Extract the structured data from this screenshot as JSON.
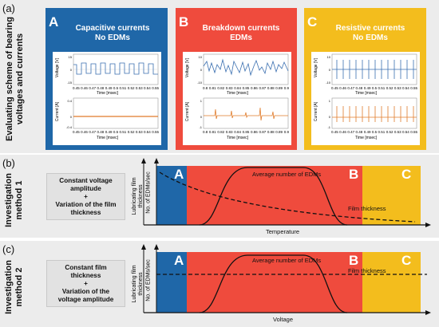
{
  "row_a": {
    "label": "(a)",
    "side_title": "Evaluating scheme of bearing voltages and currents",
    "panels": [
      {
        "letter": "A",
        "title_line1": "Capacitive currents",
        "title_line2": "No EDMs",
        "color": "#1f67a8",
        "ylabel_top": "Voltage [V]",
        "ylabel_bottom": "Current [A]",
        "xticks": [
          "0.45",
          "0.46",
          "0.47",
          "0.48",
          "0.49",
          "0.5",
          "0.51",
          "0.52",
          "0.53",
          "0.54",
          "0.55"
        ],
        "xlabel": "Time [msec]"
      },
      {
        "letter": "B",
        "title_line1": "Breakdown currents",
        "title_line2": "EDMs",
        "color": "#ef4b3d",
        "ylabel_top": "Voltage [V]",
        "ylabel_bottom": "Current [A]",
        "xticks": [
          "0.8",
          "0.81",
          "0.82",
          "0.83",
          "0.84",
          "0.85",
          "0.86",
          "0.87",
          "0.88",
          "0.89",
          "0.9"
        ],
        "xlabel": "Time [msec]"
      },
      {
        "letter": "C",
        "title_line1": "Resistive currents",
        "title_line2": "No EDMs",
        "color": "#f3bd1d",
        "ylabel_top": "Voltage [V]",
        "ylabel_bottom": "Current [A]",
        "xticks": [
          "0.45",
          "0.46",
          "0.47",
          "0.48",
          "0.49",
          "0.5",
          "0.51",
          "0.52",
          "0.53",
          "0.54",
          "0.55"
        ],
        "xlabel": "Time [msec]"
      }
    ]
  },
  "row_b": {
    "label": "(b)",
    "side_title_line1": "Investigation",
    "side_title_line2": "method 1",
    "method_text": [
      "Constant voltage",
      "amplitude",
      "+",
      "Variation of the film",
      "thickness"
    ],
    "ylabel1": "Lubricating film thickness",
    "ylabel2": "No. of EDMs/sec",
    "curve_label": "Average number of EDMs",
    "film_label": "Film thickness",
    "xlabel": "Temperature",
    "zones": [
      "A",
      "B",
      "C"
    ]
  },
  "row_c": {
    "label": "(c)",
    "side_title_line1": "Investigation",
    "side_title_line2": "method 2",
    "method_text": [
      "Constant film",
      "thickness",
      "+",
      "Variation of the",
      "voltage amplitude"
    ],
    "ylabel1": "Lubricating film thickness",
    "ylabel2": "No. of EDMs/sec",
    "curve_label": "Average number of EDMs",
    "film_label": "Film thickness",
    "xlabel": "Voltage",
    "zones": [
      "A",
      "B",
      "C"
    ]
  },
  "colors": {
    "blue": "#1f67a8",
    "red": "#ef4b3d",
    "yellow": "#f3bd1d",
    "grey_bg": "#e7e7e7"
  }
}
